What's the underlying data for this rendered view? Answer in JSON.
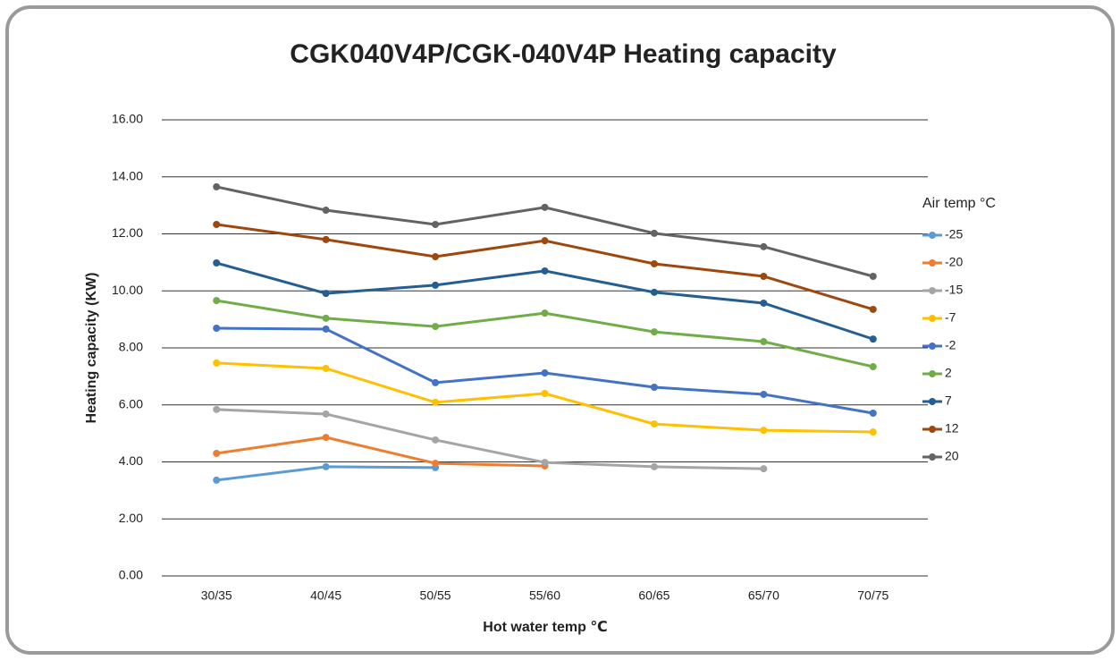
{
  "chart_data": {
    "type": "line",
    "title": "CGK040V4P/CGK-040V4P Heating capacity",
    "x_label": "Hot water temp ℃",
    "y_label": "Heating capacity (KW)",
    "legend_title": "Air temp °C",
    "legend": "right",
    "grid": true,
    "categories": [
      "30/35",
      "40/45",
      "50/55",
      "55/60",
      "60/65",
      "65/70",
      "70/75"
    ],
    "ylim": [
      0,
      16
    ],
    "yticks": [
      {
        "value": 0,
        "label": "0.00"
      },
      {
        "value": 2,
        "label": "2.00"
      },
      {
        "value": 4,
        "label": "4.00"
      },
      {
        "value": 6,
        "label": "6.00"
      },
      {
        "value": 8,
        "label": "8.00"
      },
      {
        "value": 10,
        "label": "10.00"
      },
      {
        "value": 12,
        "label": "12.00"
      },
      {
        "value": 14,
        "label": "14.00"
      },
      {
        "value": 16,
        "label": "16.00"
      }
    ],
    "series": [
      {
        "name": "-25",
        "color": "#5b9bd5",
        "values": [
          3.36,
          3.83,
          3.8,
          null,
          null,
          null,
          null
        ]
      },
      {
        "name": "-20",
        "color": "#ed7d31",
        "values": [
          4.3,
          4.86,
          3.95,
          3.86,
          null,
          null,
          null
        ]
      },
      {
        "name": "-15",
        "color": "#a5a5a5",
        "values": [
          5.84,
          5.68,
          4.77,
          3.98,
          3.83,
          3.76,
          null
        ]
      },
      {
        "name": "-7",
        "color": "#ffc000",
        "values": [
          7.47,
          7.28,
          6.09,
          6.4,
          5.33,
          5.11,
          5.05
        ]
      },
      {
        "name": "-2",
        "color": "#4472c4",
        "values": [
          8.69,
          8.66,
          6.78,
          7.12,
          6.62,
          6.37,
          5.71
        ]
      },
      {
        "name": "2",
        "color": "#70ad47",
        "values": [
          9.66,
          9.04,
          8.75,
          9.22,
          8.56,
          8.22,
          7.34
        ]
      },
      {
        "name": "7",
        "color": "#255e91",
        "values": [
          10.98,
          9.91,
          10.2,
          10.7,
          9.95,
          9.57,
          8.31
        ]
      },
      {
        "name": "12",
        "color": "#9e480e",
        "values": [
          12.33,
          11.8,
          11.2,
          11.76,
          10.95,
          10.51,
          9.35
        ]
      },
      {
        "name": "20",
        "color": "#636363",
        "values": [
          13.65,
          12.83,
          12.33,
          12.93,
          12.02,
          11.55,
          10.51
        ]
      }
    ]
  }
}
